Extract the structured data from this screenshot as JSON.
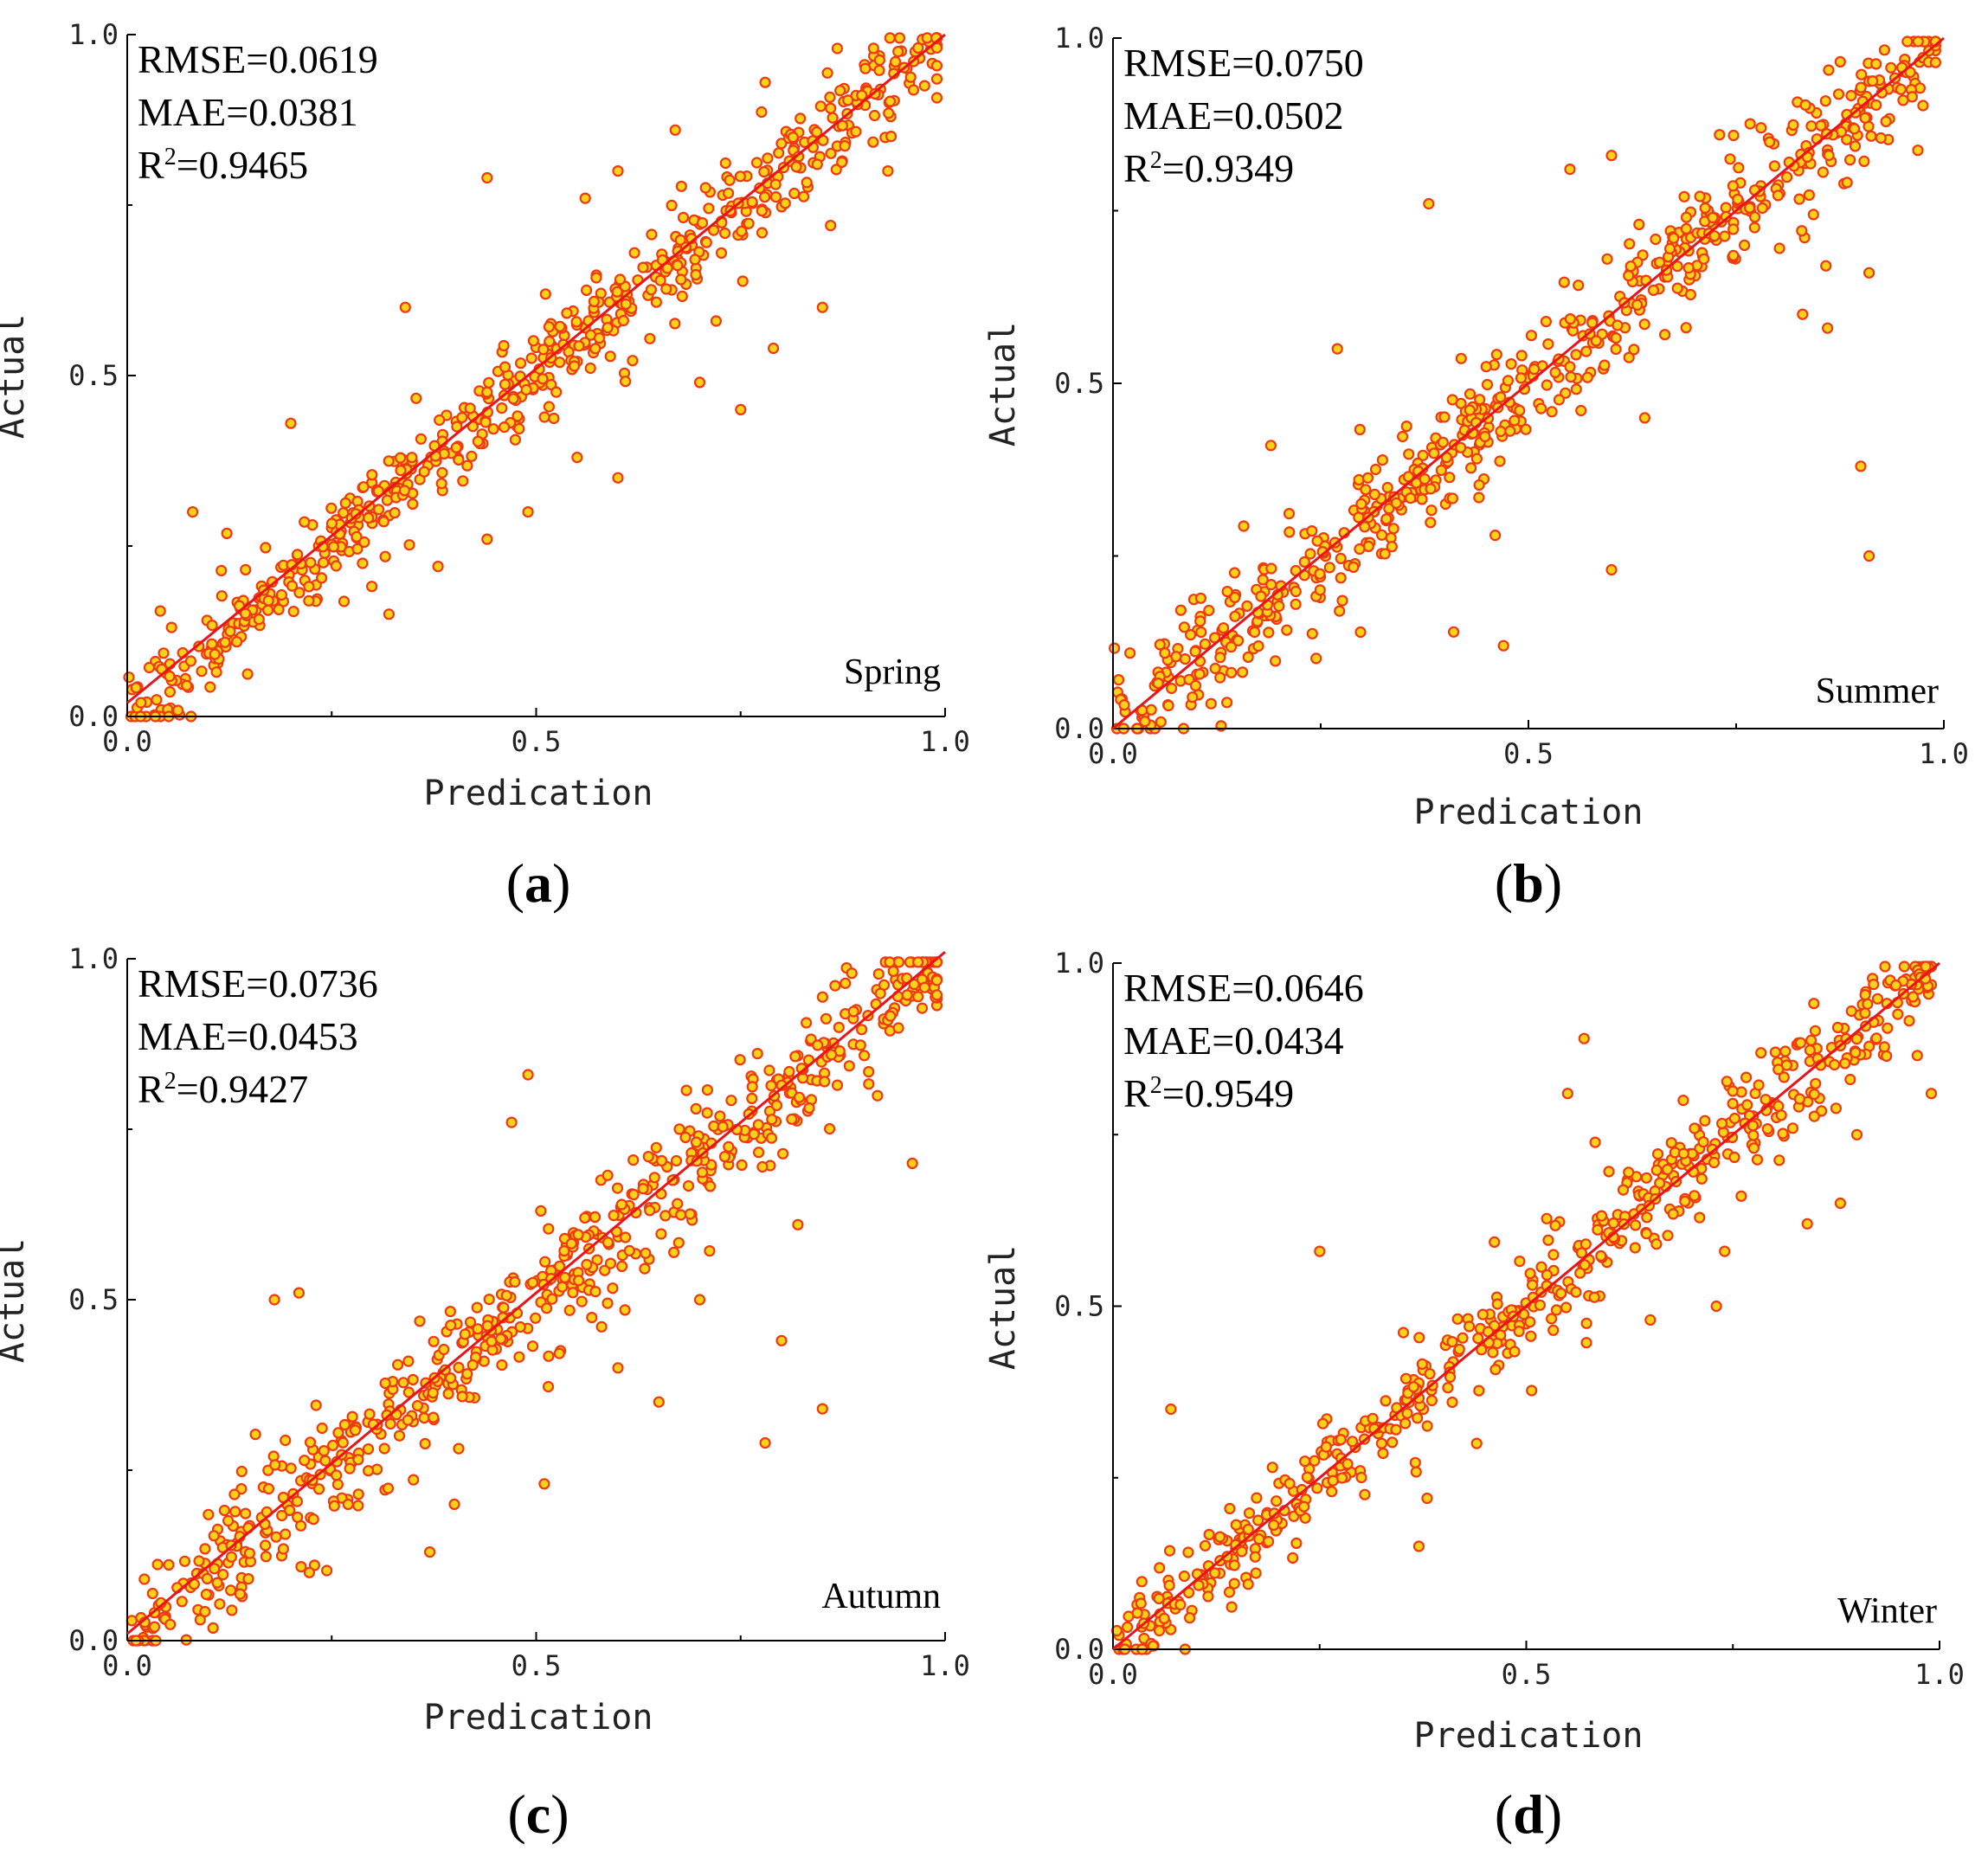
{
  "colors": {
    "axis": "#000000",
    "fit_line": "#e8141a",
    "point_fill": "#ffd21a",
    "point_stroke": "#ee3a10"
  },
  "chart_data": [
    {
      "type": "scatter",
      "panel": "(a)",
      "season": "Spring",
      "xlabel": "Predication",
      "ylabel": "Actual",
      "xlim": [
        0,
        1
      ],
      "ylim": [
        0,
        1
      ],
      "xticks": [
        "0.0",
        "0.5",
        "1.0"
      ],
      "yticks": [
        "0.0",
        "0.5",
        "1.0"
      ],
      "stats": {
        "rmse": "RMSE=0.0619",
        "mae": "MAE=0.0381",
        "r2_prefix": "R",
        "r2_sup": "2",
        "r2_value": "=0.9465"
      },
      "fit_line": [
        [
          0,
          0.02
        ],
        [
          1,
          1.0
        ]
      ],
      "outliers": [
        [
          0.08,
          0.3
        ],
        [
          0.2,
          0.43
        ],
        [
          0.32,
          0.15
        ],
        [
          0.34,
          0.6
        ],
        [
          0.38,
          0.22
        ],
        [
          0.44,
          0.26
        ],
        [
          0.44,
          0.79
        ],
        [
          0.49,
          0.3
        ],
        [
          0.55,
          0.38
        ],
        [
          0.56,
          0.76
        ],
        [
          0.6,
          0.35
        ],
        [
          0.6,
          0.8
        ],
        [
          0.67,
          0.86
        ],
        [
          0.7,
          0.49
        ],
        [
          0.72,
          0.58
        ],
        [
          0.75,
          0.45
        ],
        [
          0.78,
          0.93
        ],
        [
          0.79,
          0.54
        ],
        [
          0.85,
          0.6
        ],
        [
          0.86,
          0.72
        ],
        [
          0.93,
          0.8
        ]
      ],
      "scatter_band": 0.035,
      "n_points": 620,
      "grid": false
    },
    {
      "type": "scatter",
      "panel": "(b)",
      "season": "Summer",
      "xlabel": "Predication",
      "ylabel": "Actual",
      "xlim": [
        0,
        1
      ],
      "ylim": [
        0,
        1
      ],
      "xticks": [
        "0.0",
        "0.5",
        "1.0"
      ],
      "yticks": [
        "0.0",
        "0.5",
        "1.0"
      ],
      "stats": {
        "rmse": "RMSE=0.0750",
        "mae": "MAE=0.0502",
        "r2_prefix": "R",
        "r2_sup": "2",
        "r2_value": "=0.9349"
      },
      "fit_line": [
        [
          0,
          0.0
        ],
        [
          1,
          1.0
        ]
      ],
      "outliers": [
        [
          0.19,
          0.41
        ],
        [
          0.27,
          0.55
        ],
        [
          0.38,
          0.76
        ],
        [
          0.41,
          0.14
        ],
        [
          0.46,
          0.28
        ],
        [
          0.47,
          0.12
        ],
        [
          0.55,
          0.81
        ],
        [
          0.6,
          0.23
        ],
        [
          0.6,
          0.83
        ],
        [
          0.64,
          0.45
        ],
        [
          0.73,
          0.86
        ],
        [
          0.78,
          0.87
        ],
        [
          0.83,
          0.6
        ],
        [
          0.86,
          0.58
        ],
        [
          0.9,
          0.38
        ],
        [
          0.91,
          0.25
        ],
        [
          0.91,
          0.66
        ]
      ],
      "scatter_band": 0.045,
      "n_points": 620,
      "grid": false
    },
    {
      "type": "scatter",
      "panel": "(c)",
      "season": "Autumn",
      "xlabel": "Predication",
      "ylabel": "Actual",
      "xlim": [
        0,
        1
      ],
      "ylim": [
        0,
        1
      ],
      "xticks": [
        "0.0",
        "0.5",
        "1.0"
      ],
      "yticks": [
        "0.0",
        "0.5",
        "1.0"
      ],
      "stats": {
        "rmse": "RMSE=0.0736",
        "mae": "MAE=0.0453",
        "r2_prefix": "R",
        "r2_sup": "2",
        "r2_value": "=0.9427"
      },
      "fit_line": [
        [
          0,
          0.01
        ],
        [
          1,
          1.01
        ]
      ],
      "outliers": [
        [
          0.18,
          0.5
        ],
        [
          0.21,
          0.51
        ],
        [
          0.37,
          0.13
        ],
        [
          0.4,
          0.2
        ],
        [
          0.47,
          0.76
        ],
        [
          0.49,
          0.83
        ],
        [
          0.51,
          0.23
        ],
        [
          0.6,
          0.4
        ],
        [
          0.65,
          0.35
        ],
        [
          0.7,
          0.5
        ],
        [
          0.78,
          0.29
        ],
        [
          0.8,
          0.44
        ],
        [
          0.82,
          0.61
        ],
        [
          0.85,
          0.34
        ],
        [
          0.96,
          0.7
        ]
      ],
      "scatter_band": 0.045,
      "n_points": 620,
      "grid": false
    },
    {
      "type": "scatter",
      "panel": "(d)",
      "season": "Winter",
      "xlabel": "Predication",
      "ylabel": "Actual",
      "xlim": [
        0,
        1
      ],
      "ylim": [
        0,
        1
      ],
      "xticks": [
        "0.0",
        "0.5",
        "1.0"
      ],
      "yticks": [
        "0.0",
        "0.5",
        "1.0"
      ],
      "stats": {
        "rmse": "RMSE=0.0646",
        "mae": "MAE=0.0434",
        "r2_prefix": "R",
        "r2_sup": "2",
        "r2_value": "=0.9549"
      },
      "fit_line": [
        [
          0,
          0.0
        ],
        [
          1,
          1.0
        ]
      ],
      "outliers": [
        [
          0.07,
          0.35
        ],
        [
          0.25,
          0.58
        ],
        [
          0.37,
          0.15
        ],
        [
          0.38,
          0.22
        ],
        [
          0.44,
          0.3
        ],
        [
          0.55,
          0.81
        ],
        [
          0.57,
          0.89
        ],
        [
          0.65,
          0.48
        ],
        [
          0.69,
          0.8
        ],
        [
          0.73,
          0.5
        ],
        [
          0.74,
          0.58
        ],
        [
          0.84,
          0.62
        ],
        [
          0.88,
          0.65
        ],
        [
          0.9,
          0.75
        ],
        [
          0.99,
          0.81
        ]
      ],
      "scatter_band": 0.035,
      "n_points": 560,
      "grid": false
    }
  ]
}
